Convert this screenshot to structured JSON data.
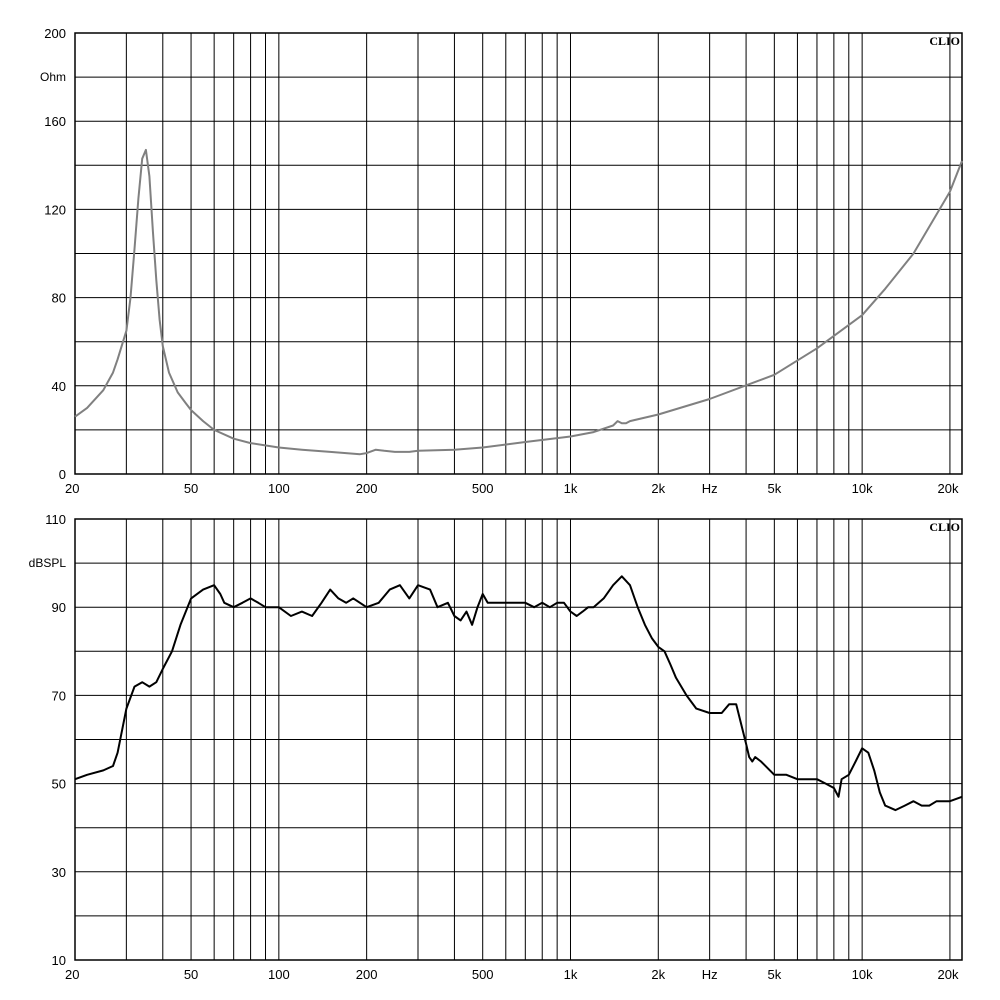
{
  "chart_data": [
    {
      "type": "line",
      "id": "impedance",
      "brand": "CLIO",
      "ylabel": "Ohm",
      "ylim": [
        0,
        200
      ],
      "xlim": [
        20,
        22000
      ],
      "x_scale": "log",
      "grid": true,
      "color": "#808080",
      "y_ticks": [
        0,
        40,
        80,
        120,
        160,
        200
      ],
      "x_ticks": [
        {
          "value": 20,
          "label": "20"
        },
        {
          "value": 50,
          "label": "50"
        },
        {
          "value": 100,
          "label": "100"
        },
        {
          "value": 200,
          "label": "200"
        },
        {
          "value": 500,
          "label": "500"
        },
        {
          "value": 1000,
          "label": "1k"
        },
        {
          "value": 2000,
          "label": "2k"
        },
        {
          "value": 5000,
          "label": "5k"
        },
        {
          "value": 10000,
          "label": "10k"
        },
        {
          "value": 20000,
          "label": "20k"
        }
      ],
      "x_unit": "Hz",
      "series": [
        {
          "x": [
            20,
            22,
            25,
            27,
            28,
            30,
            31,
            32,
            33,
            34,
            35,
            36,
            37,
            38,
            39,
            40,
            42,
            45,
            48,
            50,
            55,
            60,
            70,
            80,
            100,
            120,
            150,
            190,
            200,
            215,
            230,
            250,
            280,
            300,
            400,
            500,
            700,
            1000,
            1200,
            1400,
            1450,
            1500,
            1550,
            1600,
            2000,
            3000,
            5000,
            7000,
            10000,
            12000,
            15000,
            20000,
            22000
          ],
          "y": [
            26,
            30,
            38,
            46,
            52,
            65,
            80,
            102,
            125,
            143,
            147,
            135,
            110,
            88,
            70,
            58,
            46,
            37,
            32,
            29,
            24,
            20,
            16,
            14,
            12,
            11,
            10,
            9,
            9.5,
            11,
            10.5,
            10,
            10,
            10.5,
            11,
            12,
            14.5,
            17,
            19,
            22,
            24,
            23,
            23,
            24,
            27,
            34,
            45,
            57,
            72,
            84,
            100,
            128,
            142
          ]
        }
      ]
    },
    {
      "type": "line",
      "id": "spl",
      "brand": "CLIO",
      "ylabel": "dBSPL",
      "ylim": [
        10,
        110
      ],
      "xlim": [
        20,
        22000
      ],
      "x_scale": "log",
      "grid": true,
      "color": "#000000",
      "y_ticks": [
        10,
        30,
        50,
        70,
        90,
        110
      ],
      "x_ticks": [
        {
          "value": 20,
          "label": "20"
        },
        {
          "value": 50,
          "label": "50"
        },
        {
          "value": 100,
          "label": "100"
        },
        {
          "value": 200,
          "label": "200"
        },
        {
          "value": 500,
          "label": "500"
        },
        {
          "value": 1000,
          "label": "1k"
        },
        {
          "value": 2000,
          "label": "2k"
        },
        {
          "value": 5000,
          "label": "5k"
        },
        {
          "value": 10000,
          "label": "10k"
        },
        {
          "value": 20000,
          "label": "20k"
        }
      ],
      "x_unit": "Hz",
      "series": [
        {
          "x": [
            20,
            22,
            25,
            27,
            28,
            30,
            32,
            34,
            36,
            38,
            40,
            43,
            46,
            50,
            55,
            60,
            63,
            65,
            70,
            75,
            80,
            85,
            90,
            100,
            110,
            120,
            130,
            140,
            150,
            160,
            170,
            180,
            200,
            220,
            240,
            260,
            280,
            300,
            330,
            350,
            380,
            400,
            420,
            440,
            460,
            480,
            500,
            520,
            550,
            600,
            650,
            700,
            750,
            800,
            850,
            900,
            950,
            1000,
            1050,
            1100,
            1150,
            1200,
            1300,
            1400,
            1500,
            1600,
            1700,
            1800,
            1900,
            2000,
            2100,
            2200,
            2300,
            2500,
            2700,
            3000,
            3300,
            3500,
            3700,
            4000,
            4100,
            4200,
            4300,
            4500,
            5000,
            5500,
            6000,
            6500,
            7000,
            7500,
            8000,
            8300,
            8500,
            9000,
            9500,
            10000,
            10500,
            11000,
            11500,
            12000,
            13000,
            14000,
            15000,
            16000,
            17000,
            18000,
            20000,
            22000
          ],
          "y": [
            51,
            52,
            53,
            54,
            57,
            67,
            72,
            73,
            72,
            73,
            76,
            80,
            86,
            92,
            94,
            95,
            93,
            91,
            90,
            91,
            92,
            91,
            90,
            90,
            88,
            89,
            88,
            91,
            94,
            92,
            91,
            92,
            90,
            91,
            94,
            95,
            92,
            95,
            94,
            90,
            91,
            88,
            87,
            89,
            86,
            90,
            93,
            91,
            91,
            91,
            91,
            91,
            90,
            91,
            90,
            91,
            91,
            89,
            88,
            89,
            90,
            90,
            92,
            95,
            97,
            95,
            90,
            86,
            83,
            81,
            80,
            77,
            74,
            70,
            67,
            66,
            66,
            68,
            68,
            59,
            56,
            55,
            56,
            55,
            52,
            52,
            51,
            51,
            51,
            50,
            49,
            47,
            51,
            52,
            55,
            58,
            57,
            53,
            48,
            45,
            44,
            45,
            46,
            45,
            45,
            46,
            46,
            47
          ]
        }
      ]
    }
  ]
}
